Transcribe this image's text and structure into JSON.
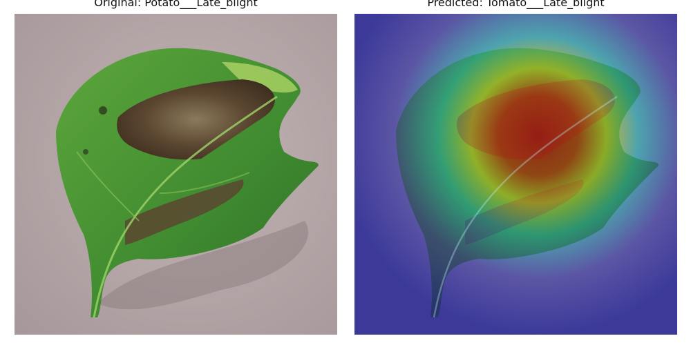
{
  "panels": {
    "original": {
      "title": "Original: Potato___Late_blight"
    },
    "predicted": {
      "title": "Predicted: Tomato___Late_blight"
    }
  },
  "colors": {
    "background": "#b3a4a6",
    "leaf_green": "#3f8a30",
    "leaf_light": "#6fbd4a",
    "lesion_brown": "#5b4630",
    "lesion_tan": "#9a8a6c",
    "heatmap_cold": "#3a3ab8",
    "heatmap_cyan": "#46c8d6",
    "heatmap_yellow": "#e6e040",
    "heatmap_hot": "#d82a1e"
  }
}
